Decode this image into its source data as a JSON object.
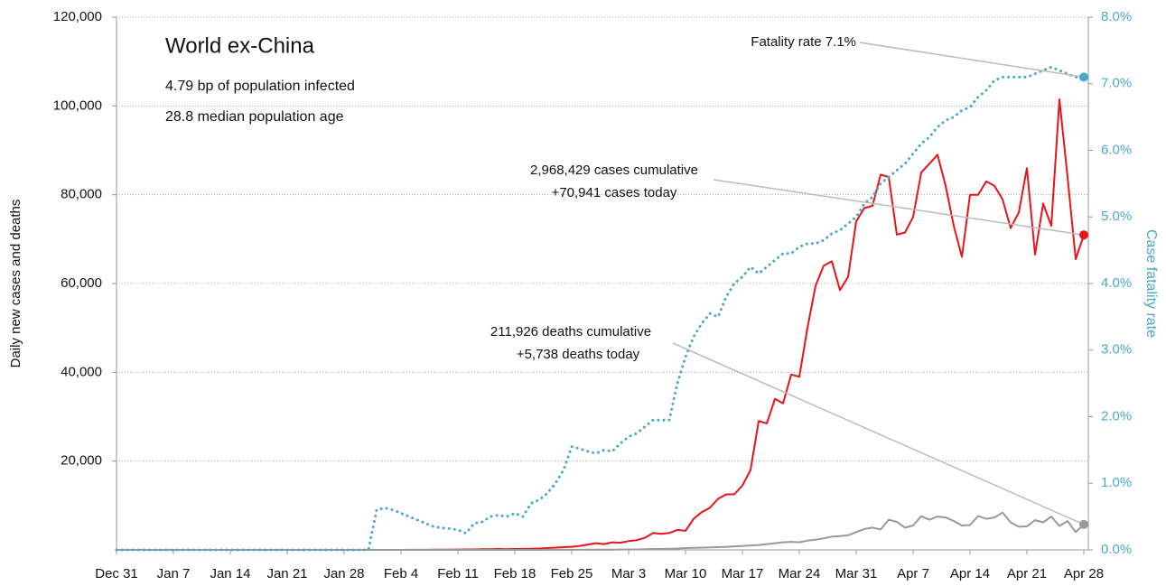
{
  "chart_data": {
    "type": "line",
    "title": "World ex-China",
    "subtitle": [
      "4.79 bp of population infected",
      "28.8 median population age"
    ],
    "ylabel": "Daily new cases and deaths",
    "y2label": "Case fatality rate",
    "annotations": [
      "Fatality rate 7.1%",
      "2,968,429 cases cumulative",
      "+70,941 cases today",
      "211,926 deaths cumulative",
      "+5,738 deaths today"
    ],
    "categories": [
      "Dec 31",
      null,
      null,
      null,
      null,
      null,
      null,
      "Jan 7",
      null,
      null,
      null,
      null,
      null,
      null,
      "Jan 14",
      null,
      null,
      null,
      null,
      null,
      null,
      "Jan 21",
      null,
      null,
      null,
      null,
      null,
      null,
      "Jan 28",
      null,
      null,
      null,
      null,
      null,
      null,
      "Feb 4",
      null,
      null,
      null,
      null,
      null,
      null,
      "Feb 11",
      null,
      null,
      null,
      null,
      null,
      null,
      "Feb 18",
      null,
      null,
      null,
      null,
      null,
      null,
      "Feb 25",
      null,
      null,
      null,
      null,
      null,
      null,
      "Mar 3",
      null,
      null,
      null,
      null,
      null,
      null,
      "Mar 10",
      null,
      null,
      null,
      null,
      null,
      null,
      "Mar 17",
      null,
      null,
      null,
      null,
      null,
      null,
      "Mar 24",
      null,
      null,
      null,
      null,
      null,
      null,
      "Mar 31",
      null,
      null,
      null,
      null,
      null,
      null,
      "Apr 7",
      null,
      null,
      null,
      null,
      null,
      null,
      "Apr 14",
      null,
      null,
      null,
      null,
      null,
      null,
      "Apr 21",
      null,
      null,
      null,
      null,
      null,
      null,
      "Apr 28"
    ],
    "series": [
      {
        "color": "#e8141a",
        "style": "solid",
        "values": [
          0,
          0,
          0,
          0,
          0,
          0,
          0,
          0,
          0,
          0,
          0,
          0,
          0,
          0,
          0,
          0,
          0,
          0,
          0,
          0,
          0,
          0,
          0,
          0,
          0,
          0,
          0,
          0,
          0,
          0,
          0,
          0,
          0,
          0,
          0,
          10,
          20,
          20,
          30,
          40,
          50,
          60,
          80,
          100,
          100,
          150,
          150,
          200,
          150,
          200,
          200,
          250,
          300,
          400,
          500,
          600,
          700,
          900,
          1200,
          1500,
          1300,
          1700,
          1600,
          2000,
          2200,
          2700,
          3800,
          3600,
          3800,
          4500,
          4300,
          7000,
          8500,
          9500,
          11500,
          12500,
          12500,
          14500,
          18000,
          29000,
          28500,
          34000,
          33000,
          39500,
          39000,
          50000,
          59500,
          64000,
          65000,
          58500,
          61500,
          74000,
          77000,
          77500,
          84500,
          84000,
          71000,
          71500,
          75000,
          85000,
          87000,
          89000,
          82000,
          73000,
          66000,
          80000,
          80000,
          83000,
          82000,
          79000,
          72500,
          76000,
          86000,
          66500,
          78000,
          73000,
          101500,
          84000,
          65500,
          70941
        ]
      },
      {
        "color": "#999999",
        "style": "solid",
        "values": [
          0,
          0,
          0,
          0,
          0,
          0,
          0,
          0,
          0,
          0,
          0,
          0,
          0,
          0,
          0,
          0,
          0,
          0,
          0,
          0,
          0,
          0,
          0,
          0,
          0,
          0,
          0,
          0,
          0,
          0,
          0,
          0,
          0,
          0,
          0,
          0,
          0,
          0,
          0,
          0,
          0,
          0,
          0,
          0,
          0,
          0,
          0,
          0,
          0,
          0,
          0,
          10,
          10,
          20,
          20,
          20,
          30,
          30,
          40,
          50,
          60,
          70,
          80,
          100,
          100,
          150,
          200,
          200,
          250,
          300,
          400,
          450,
          500,
          550,
          600,
          700,
          800,
          900,
          1000,
          1100,
          1300,
          1500,
          1700,
          1800,
          1700,
          2100,
          2300,
          2600,
          3000,
          3100,
          3300,
          4000,
          4700,
          5000,
          4600,
          6800,
          6300,
          5000,
          5500,
          7600,
          6800,
          7500,
          7300,
          6500,
          5500,
          5600,
          7600,
          7000,
          7300,
          8400,
          6200,
          5200,
          5300,
          6700,
          6200,
          7500,
          5400,
          6500,
          4000,
          5738
        ]
      },
      {
        "color": "#4aa8c8",
        "style": "dotted",
        "axis": "y2",
        "values": [
          0,
          0,
          0,
          0,
          0,
          0,
          0,
          0,
          0,
          0,
          0,
          0,
          0,
          0,
          0,
          0,
          0,
          0,
          0,
          0,
          0,
          0,
          0,
          0,
          0,
          0,
          0,
          0,
          0,
          0,
          0,
          0,
          0.6,
          0.63,
          0.6,
          0.55,
          0.5,
          0.45,
          0.4,
          0.35,
          0.33,
          0.32,
          0.3,
          0.25,
          0.4,
          0.42,
          0.5,
          0.52,
          0.5,
          0.55,
          0.5,
          0.7,
          0.75,
          0.85,
          1.0,
          1.2,
          1.55,
          1.52,
          1.48,
          1.45,
          1.5,
          1.48,
          1.6,
          1.7,
          1.75,
          1.85,
          1.95,
          1.95,
          1.95,
          2.5,
          2.9,
          3.2,
          3.4,
          3.55,
          3.5,
          3.8,
          4.0,
          4.1,
          4.25,
          4.15,
          4.25,
          4.35,
          4.45,
          4.45,
          4.55,
          4.6,
          4.6,
          4.65,
          4.75,
          4.8,
          4.9,
          5.0,
          5.2,
          5.3,
          5.5,
          5.6,
          5.7,
          5.8,
          5.95,
          6.1,
          6.2,
          6.35,
          6.45,
          6.5,
          6.6,
          6.65,
          6.8,
          6.9,
          7.05,
          7.1,
          7.1,
          7.1,
          7.1,
          7.15,
          7.2,
          7.25,
          7.2,
          7.15,
          7.1,
          7.1
        ]
      }
    ],
    "ylim": [
      0,
      120000
    ],
    "yticks": [
      {
        "value": 20000,
        "label": "20,000"
      },
      {
        "value": 40000,
        "label": "40,000"
      },
      {
        "value": 60000,
        "label": "60,000"
      },
      {
        "value": 80000,
        "label": "80,000"
      },
      {
        "value": 100000,
        "label": "100,000"
      },
      {
        "value": 120000,
        "label": "120,000"
      }
    ],
    "y2lim": [
      0,
      8
    ],
    "y2ticks": [
      {
        "value": 0,
        "label": "0.0%"
      },
      {
        "value": 1,
        "label": "1.0%"
      },
      {
        "value": 2,
        "label": "2.0%"
      },
      {
        "value": 3,
        "label": "3.0%"
      },
      {
        "value": 4,
        "label": "4.0%"
      },
      {
        "value": 5,
        "label": "5.0%"
      },
      {
        "value": 6,
        "label": "6.0%"
      },
      {
        "value": 7,
        "label": "7.0%"
      },
      {
        "value": 8,
        "label": "8.0%"
      }
    ],
    "y2color": "#4aa8c8",
    "grid": true
  }
}
